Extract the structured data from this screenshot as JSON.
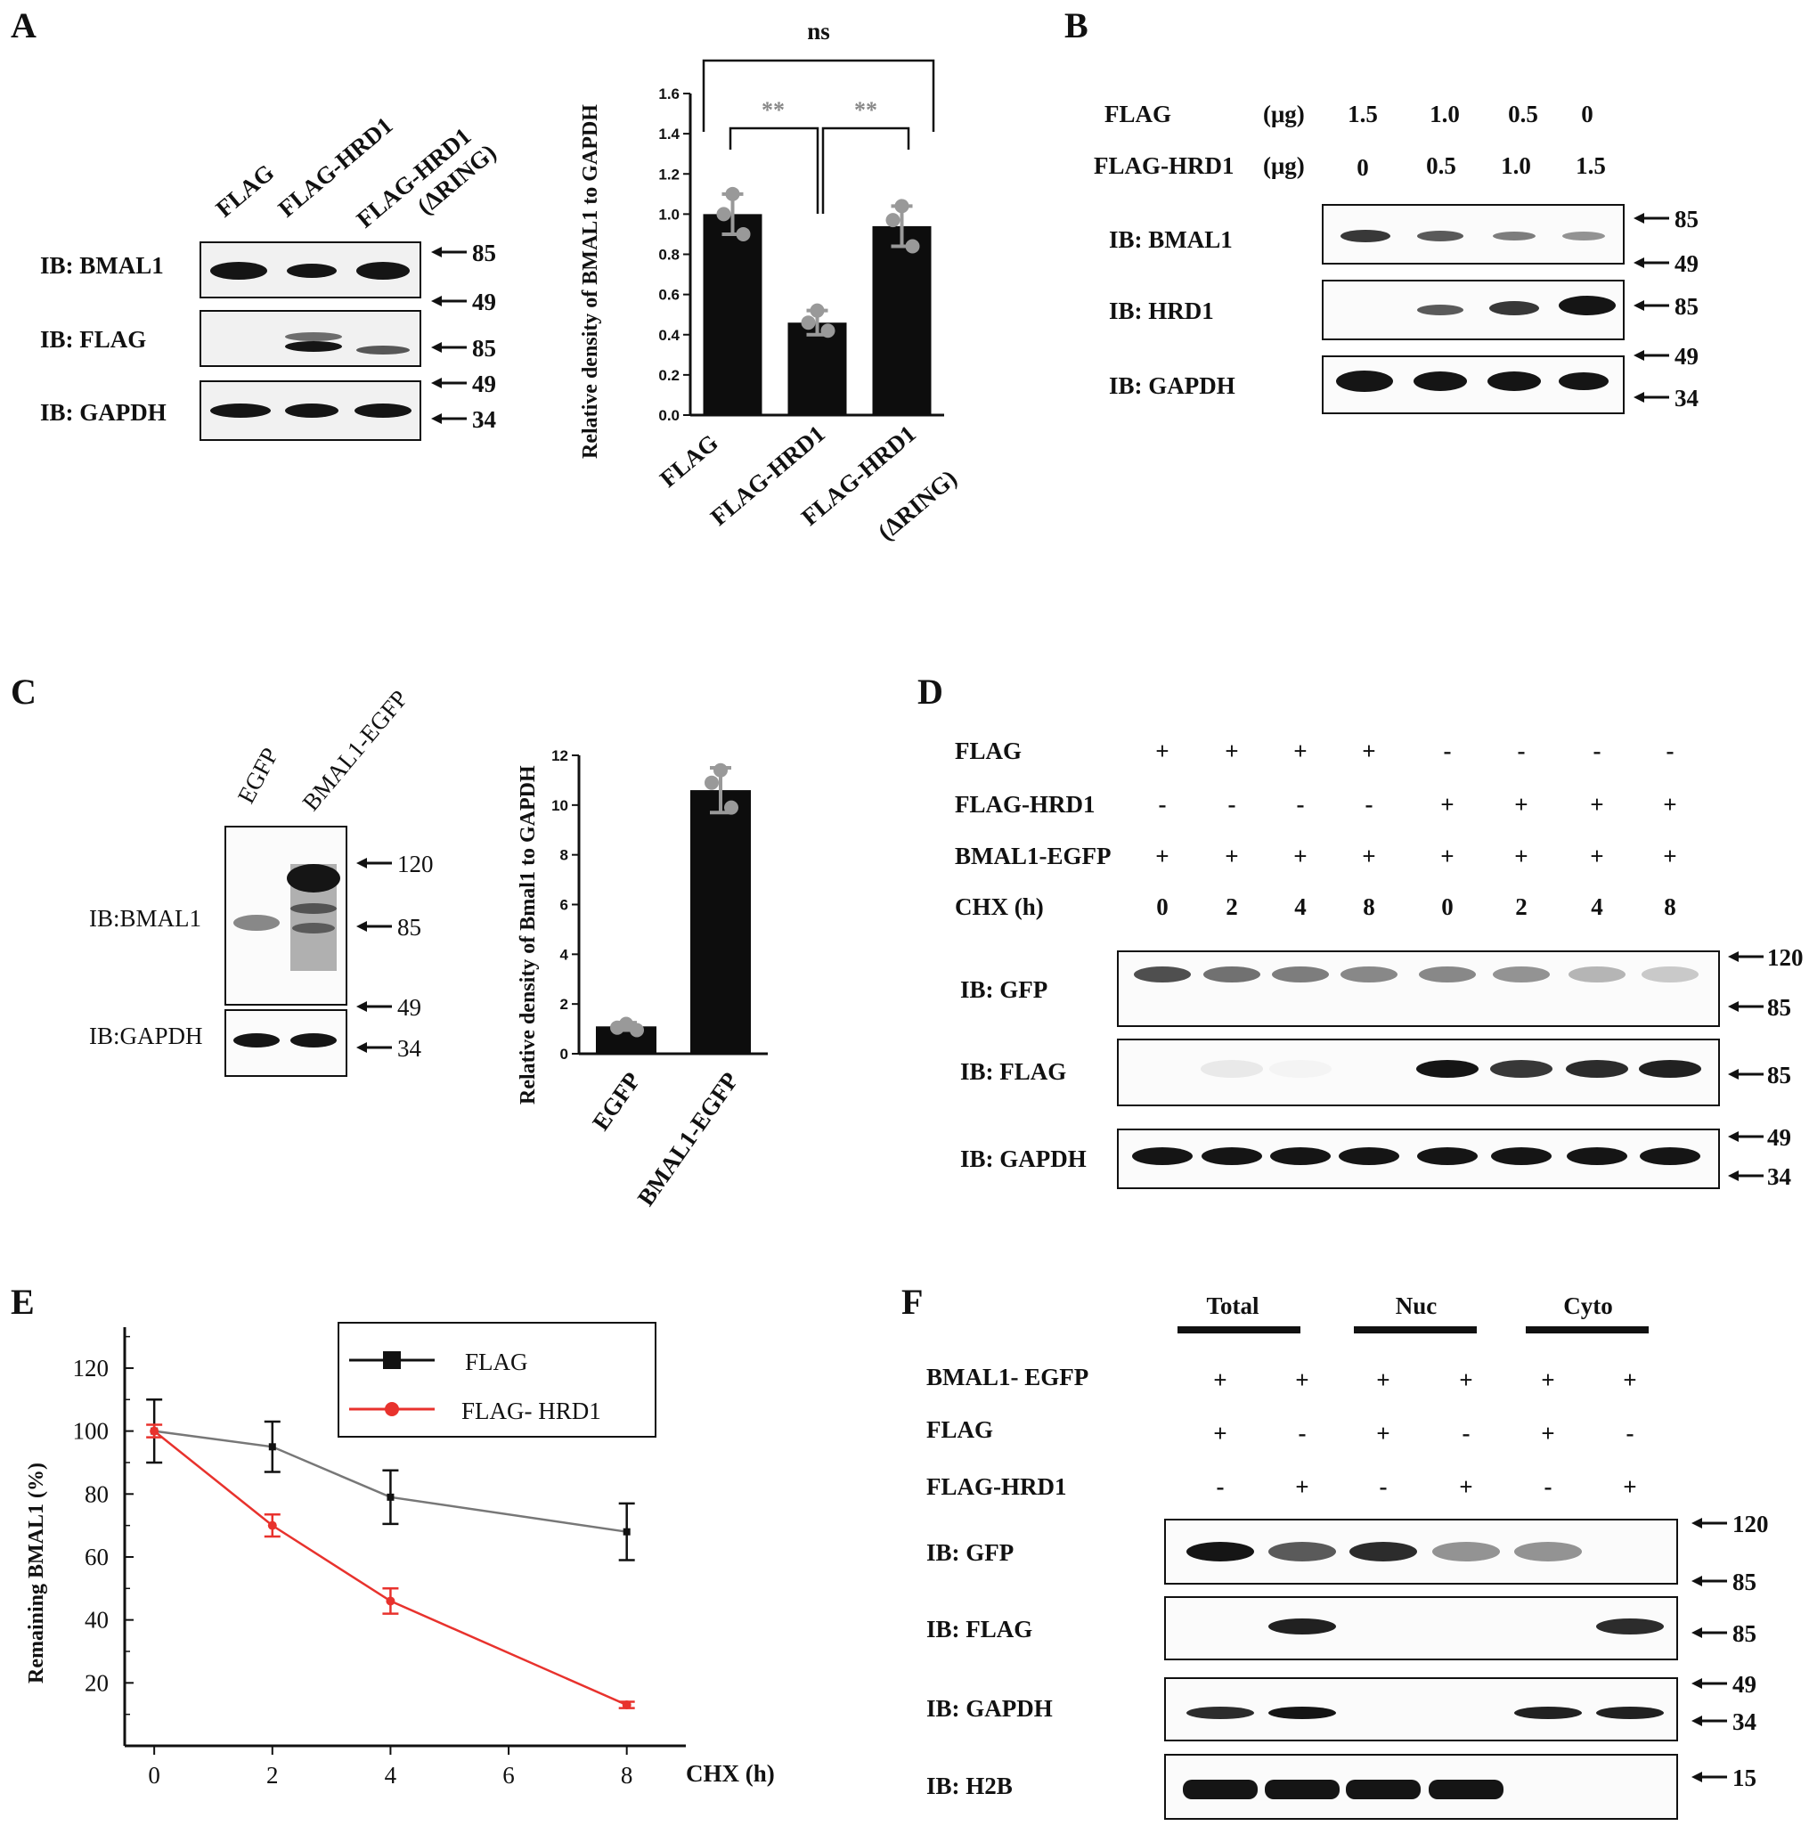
{
  "panels": {
    "A": {
      "letter": "A",
      "lanes": [
        "FLAG",
        "FLAG-HRD1",
        "FLAG-HRD1",
        "(ΔRING)"
      ],
      "blots": [
        "IB: BMAL1",
        "IB: FLAG",
        "IB: GAPDH"
      ],
      "markers": [
        "85",
        "49",
        "85",
        "49",
        "34"
      ],
      "significance": [
        "ns",
        "**",
        "**"
      ]
    },
    "B": {
      "letter": "B",
      "rows": [
        {
          "label": "FLAG",
          "unit": "(μg)",
          "values": [
            "1.5",
            "1.0",
            "0.5",
            "0"
          ]
        },
        {
          "label": "FLAG-HRD1",
          "unit": "(μg)",
          "values": [
            "0",
            "0.5",
            "1.0",
            "1.5"
          ]
        }
      ],
      "blots": [
        "IB: BMAL1",
        "IB: HRD1",
        "IB: GAPDH"
      ],
      "markers": [
        "85",
        "49",
        "85",
        "49",
        "34"
      ]
    },
    "C": {
      "letter": "C",
      "lanes": [
        "EGFP",
        "BMAL1-EGFP"
      ],
      "blots": [
        "IB:BMAL1",
        "IB:GAPDH"
      ],
      "markers": [
        "120",
        "85",
        "49",
        "34"
      ]
    },
    "D": {
      "letter": "D",
      "rows": [
        {
          "label": "FLAG",
          "values": [
            "+",
            "+",
            "+",
            "+",
            "-",
            "-",
            "-",
            "-"
          ]
        },
        {
          "label": "FLAG-HRD1",
          "values": [
            "-",
            "-",
            "-",
            "-",
            "+",
            "+",
            "+",
            "+"
          ]
        },
        {
          "label": "BMAL1-EGFP",
          "values": [
            "+",
            "+",
            "+",
            "+",
            "+",
            "+",
            "+",
            "+"
          ]
        },
        {
          "label": "CHX (h)",
          "values": [
            "0",
            "2",
            "4",
            "8",
            "0",
            "2",
            "4",
            "8"
          ]
        }
      ],
      "blots": [
        "IB: GFP",
        "IB: FLAG",
        "IB: GAPDH"
      ],
      "markers": [
        "120",
        "85",
        "85",
        "49",
        "34"
      ]
    },
    "E": {
      "letter": "E",
      "ylabel": "Remaining BMAL1 (%)",
      "xlabel": "CHX (h)",
      "legend": [
        "FLAG",
        "FLAG- HRD1"
      ]
    },
    "F": {
      "letter": "F",
      "groups": [
        "Total",
        "Nuc",
        "Cyto"
      ],
      "rows": [
        {
          "label": "BMAL1- EGFP",
          "values": [
            "+",
            "+",
            "+",
            "+",
            "+",
            "+"
          ]
        },
        {
          "label": "FLAG",
          "values": [
            "+",
            "-",
            "+",
            "-",
            "+",
            "-"
          ]
        },
        {
          "label": "FLAG-HRD1",
          "values": [
            "-",
            "+",
            "-",
            "+",
            "-",
            "+"
          ]
        }
      ],
      "blots": [
        "IB: GFP",
        "IB: FLAG",
        "IB: GAPDH",
        "IB: H2B"
      ],
      "markers": [
        "120",
        "85",
        "85",
        "49",
        "34",
        "15"
      ]
    }
  },
  "chart_data": [
    {
      "id": "A-bar",
      "type": "bar",
      "categories": [
        "FLAG",
        "FLAG-HRD1",
        "FLAG-HRD1 (ΔRING)"
      ],
      "values": [
        1.0,
        0.46,
        0.94
      ],
      "errors": [
        0.1,
        0.06,
        0.1
      ],
      "points": [
        [
          1.1,
          1.0,
          0.9
        ],
        [
          0.52,
          0.46,
          0.42
        ],
        [
          1.04,
          0.97,
          0.84
        ]
      ],
      "ylabel": "Relative density of BMAL1 to GAPDH",
      "ylim": [
        0,
        1.6
      ],
      "yticks": [
        "0.0",
        "0.2",
        "0.4",
        "0.6",
        "0.8",
        "1.0",
        "1.2",
        "1.4",
        "1.6"
      ]
    },
    {
      "id": "C-bar",
      "type": "bar",
      "categories": [
        "EGFP",
        "BMAL1-EGFP"
      ],
      "values": [
        1.1,
        10.6
      ],
      "errors": [
        0.15,
        0.9
      ],
      "points": [
        [
          1.2,
          1.05,
          0.95
        ],
        [
          11.4,
          10.9,
          9.9
        ]
      ],
      "ylabel": "Relative density of Bmal1 to GAPDH",
      "ylim": [
        0,
        12
      ],
      "yticks": [
        "0",
        "2",
        "4",
        "6",
        "8",
        "10",
        "12"
      ]
    },
    {
      "id": "E-line",
      "type": "line",
      "x": [
        0,
        2,
        4,
        8
      ],
      "xticks": [
        "0",
        "2",
        "4",
        "6",
        "8"
      ],
      "yticks": [
        "20",
        "40",
        "60",
        "80",
        "100",
        "120"
      ],
      "xlim": [
        -0.5,
        9
      ],
      "ylim": [
        0,
        133
      ],
      "series": [
        {
          "name": "FLAG",
          "color": "#111111",
          "values": [
            100,
            95,
            79,
            68
          ],
          "errors": [
            10,
            8,
            8.5,
            9
          ]
        },
        {
          "name": "FLAG- HRD1",
          "color": "#e8322d",
          "values": [
            100,
            70,
            46,
            13
          ],
          "errors": [
            2,
            3.5,
            4,
            1
          ]
        }
      ]
    }
  ]
}
